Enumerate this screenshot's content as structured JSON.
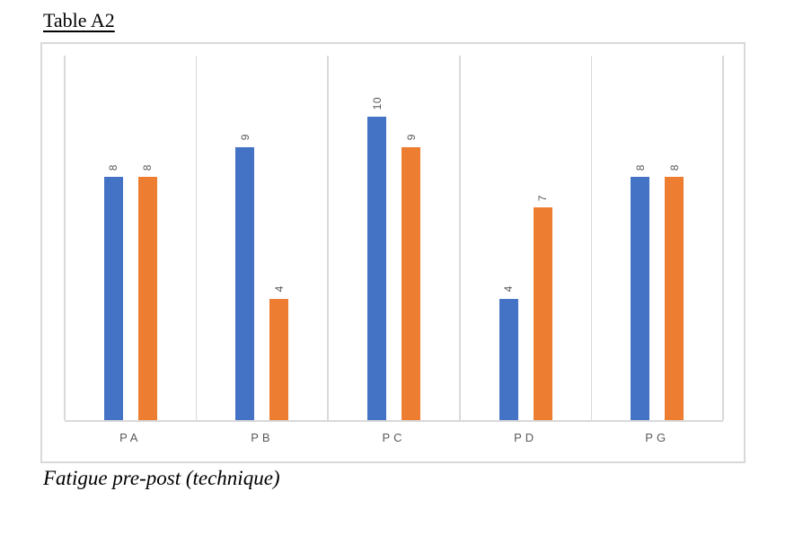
{
  "page": {
    "title": "Table A2",
    "caption": "Fatigue pre-post (technique)"
  },
  "chart_data": {
    "type": "bar",
    "title": "Table A2",
    "caption": "Fatigue pre-post (technique)",
    "categories": [
      "PA",
      "PB",
      "PC",
      "PD",
      "PG"
    ],
    "series": [
      {
        "name": "series-1",
        "color": "#4472C4",
        "values": [
          8,
          9,
          10,
          4,
          8
        ]
      },
      {
        "name": "series-2",
        "color": "#ED7D31",
        "values": [
          8,
          4,
          9,
          7,
          8
        ]
      }
    ],
    "ylim": [
      0,
      12
    ],
    "value_axis_visible": false,
    "legend": "none",
    "grid": {
      "vertical_category_separators": true,
      "color": "#D9D9D9"
    },
    "axis_line_color": "#D9D9D9",
    "chart_border_color": "#D9D9D9",
    "data_labels": {
      "shown": true,
      "rotation_deg": -90,
      "color": "#595959"
    },
    "category_label_color": "#595959"
  }
}
